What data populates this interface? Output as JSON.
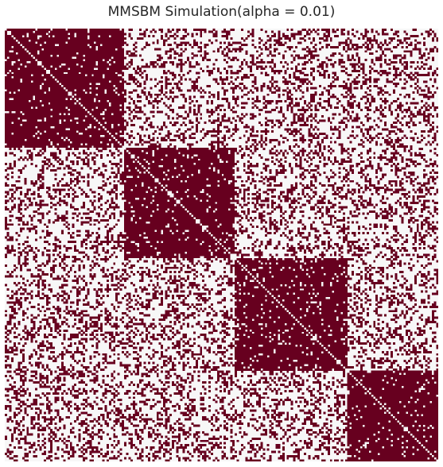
{
  "chart_data": {
    "type": "heatmap",
    "title": "MMSBM Simulation(alpha = 0.01)",
    "xlabel": "",
    "ylabel": "",
    "n_nodes": 200,
    "blocks": [
      {
        "name": "",
        "start": 0,
        "end": 55
      },
      {
        "name": "",
        "start": 55,
        "end": 106
      },
      {
        "name": "",
        "start": 106,
        "end": 158
      },
      {
        "name": "",
        "start": 158,
        "end": 200
      }
    ],
    "within_block_edge_probability": 0.9,
    "between_block_edge_probability": 0.3,
    "diagonal_value": 0,
    "symmetric": true,
    "value_colors": {
      "0": "#f7f7f7",
      "1": "#67001f"
    },
    "colormap": "RdBu_r",
    "grid": false,
    "colorbar": false
  }
}
